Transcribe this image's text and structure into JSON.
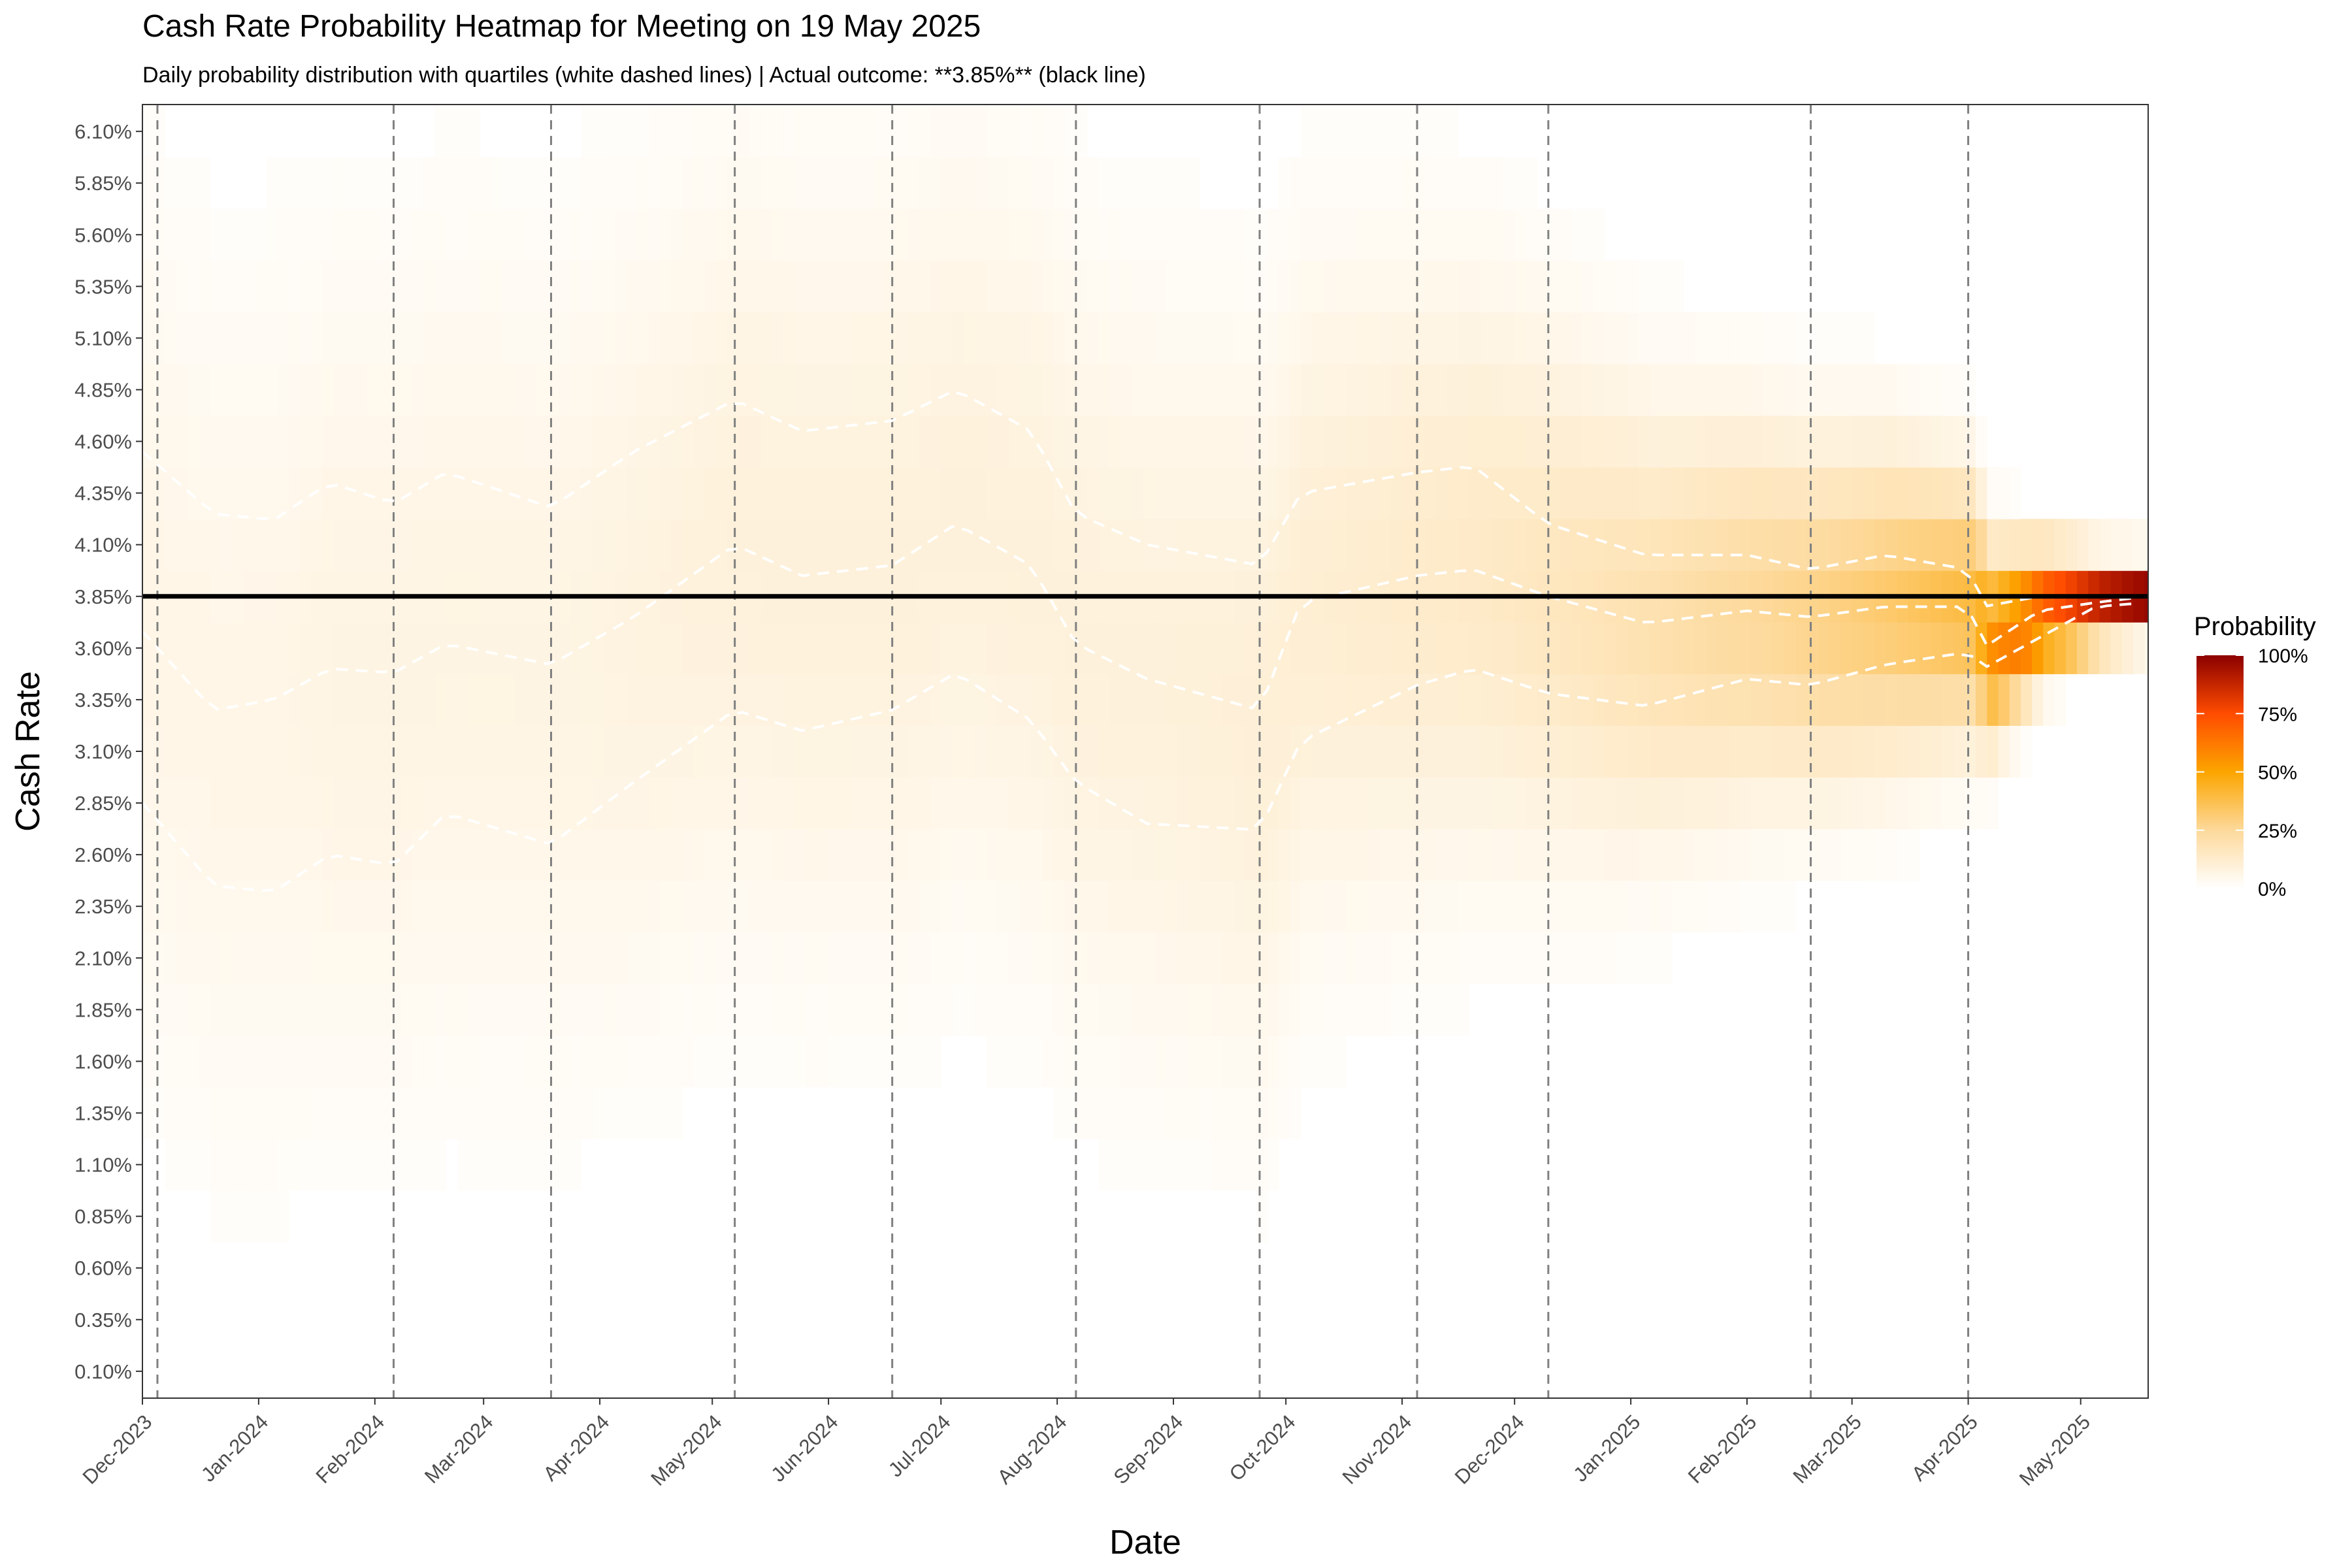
{
  "chart_data": {
    "type": "heatmap",
    "title": "Cash Rate Probability Heatmap for Meeting on 19 May 2025",
    "subtitle": "Daily probability distribution with quartiles (white dashed lines) | Actual outcome: **3.85%** (black line)",
    "xlabel": "Date",
    "ylabel": "Cash Rate",
    "x_tick_labels": [
      "Dec-2023",
      "Jan-2024",
      "Feb-2024",
      "Mar-2024",
      "Apr-2024",
      "May-2024",
      "Jun-2024",
      "Jul-2024",
      "Aug-2024",
      "Sep-2024",
      "Oct-2024",
      "Nov-2024",
      "Dec-2024",
      "Jan-2025",
      "Feb-2025",
      "Mar-2025",
      "Apr-2025",
      "May-2025"
    ],
    "x_tick_dates": [
      "2023-12-01",
      "2024-01-01",
      "2024-02-01",
      "2024-03-01",
      "2024-04-01",
      "2024-05-01",
      "2024-06-01",
      "2024-07-01",
      "2024-08-01",
      "2024-09-01",
      "2024-10-01",
      "2024-11-01",
      "2024-12-01",
      "2025-01-01",
      "2025-02-01",
      "2025-03-01",
      "2025-04-01",
      "2025-05-01"
    ],
    "xlim": [
      "2023-12-01",
      "2025-05-19"
    ],
    "y_tick_labels": [
      "6.10%",
      "5.85%",
      "5.60%",
      "5.35%",
      "5.10%",
      "4.85%",
      "4.60%",
      "4.35%",
      "4.10%",
      "3.85%",
      "3.60%",
      "3.35%",
      "3.10%",
      "2.85%",
      "2.60%",
      "2.35%",
      "2.10%",
      "1.85%",
      "1.60%",
      "1.35%",
      "1.10%",
      "0.85%",
      "0.60%",
      "0.35%",
      "0.10%"
    ],
    "y_tick_values": [
      6.1,
      5.85,
      5.6,
      5.35,
      5.1,
      4.85,
      4.6,
      4.35,
      4.1,
      3.85,
      3.6,
      3.35,
      3.1,
      2.85,
      2.6,
      2.35,
      2.1,
      1.85,
      1.6,
      1.35,
      1.1,
      0.85,
      0.6,
      0.35,
      0.1
    ],
    "ylim": [
      -0.03,
      6.23
    ],
    "meeting_dates": [
      "2023-12-05",
      "2024-02-06",
      "2024-03-19",
      "2024-05-07",
      "2024-06-18",
      "2024-08-06",
      "2024-09-24",
      "2024-11-05",
      "2024-12-10",
      "2025-02-18",
      "2025-04-01"
    ],
    "actual_outcome": 3.85,
    "probability_profile": [
      {
        "date": "2023-12-01",
        "q1": 2.85,
        "median": 3.68,
        "q3": 4.55,
        "spread": 1.4,
        "peak": 0.06
      },
      {
        "date": "2023-12-20",
        "q1": 2.45,
        "median": 3.3,
        "q3": 4.25,
        "spread": 1.4,
        "peak": 0.06
      },
      {
        "date": "2024-01-05",
        "q1": 2.42,
        "median": 3.35,
        "q3": 4.22,
        "spread": 1.4,
        "peak": 0.06
      },
      {
        "date": "2024-01-20",
        "q1": 2.6,
        "median": 3.5,
        "q3": 4.4,
        "spread": 1.38,
        "peak": 0.07
      },
      {
        "date": "2024-02-06",
        "q1": 2.55,
        "median": 3.48,
        "q3": 4.3,
        "spread": 1.36,
        "peak": 0.07
      },
      {
        "date": "2024-02-20",
        "q1": 2.8,
        "median": 3.62,
        "q3": 4.45,
        "spread": 1.34,
        "peak": 0.07
      },
      {
        "date": "2024-03-19",
        "q1": 2.65,
        "median": 3.52,
        "q3": 4.28,
        "spread": 1.32,
        "peak": 0.07
      },
      {
        "date": "2024-04-10",
        "q1": 2.95,
        "median": 3.75,
        "q3": 4.55,
        "spread": 1.3,
        "peak": 0.08
      },
      {
        "date": "2024-05-07",
        "q1": 3.3,
        "median": 4.1,
        "q3": 4.8,
        "spread": 1.28,
        "peak": 0.09
      },
      {
        "date": "2024-05-25",
        "q1": 3.2,
        "median": 3.95,
        "q3": 4.65,
        "spread": 1.28,
        "peak": 0.09
      },
      {
        "date": "2024-06-18",
        "q1": 3.3,
        "median": 4.0,
        "q3": 4.7,
        "spread": 1.28,
        "peak": 0.09
      },
      {
        "date": "2024-07-05",
        "q1": 3.48,
        "median": 4.2,
        "q3": 4.85,
        "spread": 1.26,
        "peak": 0.09
      },
      {
        "date": "2024-07-25",
        "q1": 3.25,
        "median": 4.0,
        "q3": 4.65,
        "spread": 1.26,
        "peak": 0.09
      },
      {
        "date": "2024-08-06",
        "q1": 2.95,
        "median": 3.62,
        "q3": 4.25,
        "spread": 1.24,
        "peak": 0.09
      },
      {
        "date": "2024-08-25",
        "q1": 2.75,
        "median": 3.45,
        "q3": 4.1,
        "spread": 1.22,
        "peak": 0.09
      },
      {
        "date": "2024-09-24",
        "q1": 2.72,
        "median": 3.3,
        "q3": 4.0,
        "spread": 1.2,
        "peak": 0.1
      },
      {
        "date": "2024-10-05",
        "q1": 3.15,
        "median": 3.82,
        "q3": 4.35,
        "spread": 1.1,
        "peak": 0.11
      },
      {
        "date": "2024-11-05",
        "q1": 3.42,
        "median": 3.95,
        "q3": 4.45,
        "spread": 1.0,
        "peak": 0.13
      },
      {
        "date": "2024-11-20",
        "q1": 3.5,
        "median": 3.98,
        "q3": 4.48,
        "spread": 0.95,
        "peak": 0.14
      },
      {
        "date": "2024-12-10",
        "q1": 3.38,
        "median": 3.85,
        "q3": 4.2,
        "spread": 0.85,
        "peak": 0.16
      },
      {
        "date": "2025-01-05",
        "q1": 3.32,
        "median": 3.72,
        "q3": 4.05,
        "spread": 0.7,
        "peak": 0.2
      },
      {
        "date": "2025-02-01",
        "q1": 3.45,
        "median": 3.78,
        "q3": 4.05,
        "spread": 0.6,
        "peak": 0.25
      },
      {
        "date": "2025-02-18",
        "q1": 3.42,
        "median": 3.75,
        "q3": 3.98,
        "spread": 0.55,
        "peak": 0.28
      },
      {
        "date": "2025-03-10",
        "q1": 3.52,
        "median": 3.8,
        "q3": 4.05,
        "spread": 0.5,
        "peak": 0.33
      },
      {
        "date": "2025-04-01",
        "q1": 3.58,
        "median": 3.8,
        "q3": 3.98,
        "spread": 0.4,
        "peak": 0.4
      },
      {
        "date": "2025-04-05",
        "q1": 3.5,
        "median": 3.6,
        "q3": 3.8,
        "spread": 0.3,
        "peak": 0.55
      },
      {
        "date": "2025-04-20",
        "q1": 3.65,
        "median": 3.78,
        "q3": 3.85,
        "spread": 0.18,
        "peak": 0.75
      },
      {
        "date": "2025-05-05",
        "q1": 3.8,
        "median": 3.82,
        "q3": 3.85,
        "spread": 0.12,
        "peak": 0.92
      },
      {
        "date": "2025-05-19",
        "q1": 3.82,
        "median": 3.85,
        "q3": 3.85,
        "spread": 0.1,
        "peak": 0.98
      }
    ],
    "grid": false,
    "legend_position": "right",
    "legend": {
      "title": "Probability",
      "labels": [
        "100%",
        "75%",
        "50%",
        "25%",
        "0%"
      ],
      "values": [
        1.0,
        0.75,
        0.5,
        0.25,
        0.0
      ],
      "colors": [
        "#ffffff",
        "#fdd99b",
        "#fca500",
        "#ff4c00",
        "#8b0000"
      ]
    }
  }
}
